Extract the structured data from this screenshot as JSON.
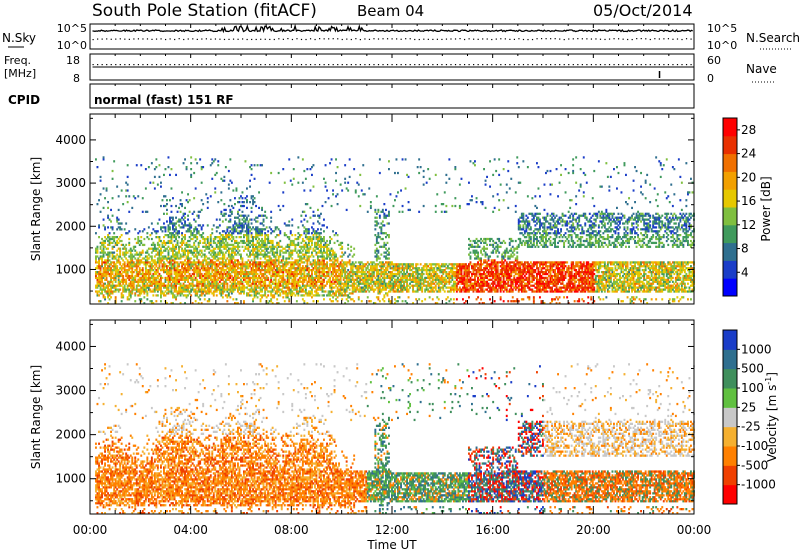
{
  "header": {
    "station": "South Pole Station (fitACF)",
    "beam": "Beam 04",
    "date": "05/Oct/2014"
  },
  "top_panels": {
    "nsky_label": "N.Sky",
    "nsearch_label": "N.Search",
    "noise_ticks": [
      "10^5",
      "10^0"
    ],
    "noise_ticks_right": [
      "10^5",
      "10^0"
    ],
    "freq_label_1": "Freq.",
    "freq_label_2": "[MHz]",
    "freq_ticks": [
      "18",
      "8"
    ],
    "nave_ticks": [
      "60",
      "0"
    ],
    "nave_label": "Nave",
    "cpid_label": "CPID",
    "cpid_text": "normal (fast) 151 RF"
  },
  "colors": {
    "power": [
      "#0000ff",
      "#1a3dc8",
      "#2f6f8f",
      "#3f9a5c",
      "#7fbf3f",
      "#e6c800",
      "#f2a000",
      "#f07000",
      "#e83000",
      "#ff0000"
    ],
    "velocity": [
      "#ff0000",
      "#f04000",
      "#ff8000",
      "#f5b030",
      "#c8c8c8",
      "#60c040",
      "#3f8f5c",
      "#2f6f8f",
      "#1a3dc8"
    ]
  },
  "chart_data": [
    {
      "type": "heatmap",
      "name": "power",
      "ylabel": "Slant Range [km]",
      "xlabel": "Time UT",
      "x_ticks": [
        "00:00",
        "04:00",
        "08:00",
        "12:00",
        "16:00",
        "20:00",
        "00:00"
      ],
      "y_ticks": [
        1000,
        2000,
        3000,
        4000
      ],
      "ylim": [
        200,
        4600
      ],
      "xlim_hours": [
        0,
        24
      ],
      "colorbar_label": "Power [dB]",
      "colorbar_ticks": [
        4,
        8,
        12,
        16,
        20,
        24,
        28
      ],
      "colorbar_range": [
        0,
        30
      ]
    },
    {
      "type": "heatmap",
      "name": "velocity",
      "ylabel": "Slant Range [km]",
      "xlabel": "Time UT",
      "x_ticks": [
        "00:00",
        "04:00",
        "08:00",
        "12:00",
        "16:00",
        "20:00",
        "00:00"
      ],
      "y_ticks": [
        1000,
        2000,
        3000,
        4000
      ],
      "ylim": [
        200,
        4600
      ],
      "xlim_hours": [
        0,
        24
      ],
      "colorbar_label_1": "Velocity",
      "colorbar_label_2": "[m s",
      "colorbar_label_sup": "-1",
      "colorbar_label_3": "]",
      "colorbar_ticks": [
        "1000",
        "500",
        "100",
        "25",
        "-25",
        "-100",
        "-500",
        "-1000"
      ]
    }
  ],
  "x_axis_title": "Time UT"
}
